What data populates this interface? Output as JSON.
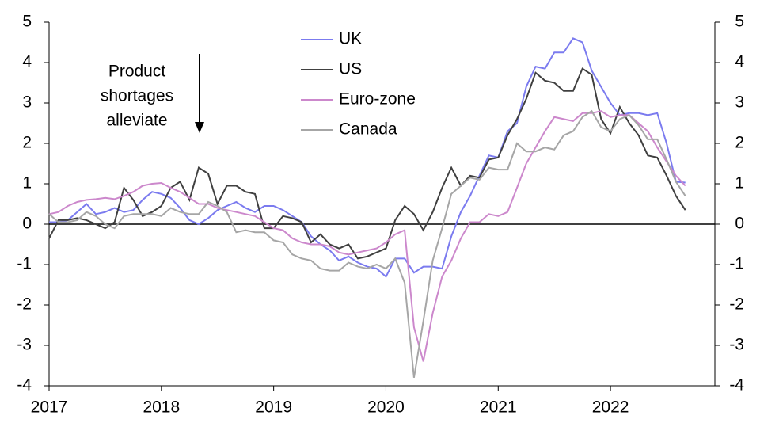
{
  "chart_data": {
    "type": "line",
    "annotation": [
      "Product",
      "shortages",
      "alleviate"
    ],
    "x": [
      2017,
      2017.083,
      2017.167,
      2017.25,
      2017.333,
      2017.417,
      2017.5,
      2017.583,
      2017.667,
      2017.75,
      2017.833,
      2017.917,
      2018,
      2018.083,
      2018.167,
      2018.25,
      2018.333,
      2018.417,
      2018.5,
      2018.583,
      2018.667,
      2018.75,
      2018.833,
      2018.917,
      2019,
      2019.083,
      2019.167,
      2019.25,
      2019.333,
      2019.417,
      2019.5,
      2019.583,
      2019.667,
      2019.75,
      2019.833,
      2019.917,
      2020,
      2020.083,
      2020.167,
      2020.25,
      2020.333,
      2020.417,
      2020.5,
      2020.583,
      2020.667,
      2020.75,
      2020.833,
      2020.917,
      2021,
      2021.083,
      2021.167,
      2021.25,
      2021.333,
      2021.417,
      2021.5,
      2021.583,
      2021.667,
      2021.75,
      2021.833,
      2021.917,
      2022,
      2022.083,
      2022.167,
      2022.25,
      2022.333,
      2022.417,
      2022.5,
      2022.583,
      2022.667
    ],
    "series": [
      {
        "name": "UK",
        "color": "#7b7bef",
        "values": [
          0.05,
          0.05,
          0.1,
          0.3,
          0.5,
          0.25,
          0.3,
          0.4,
          0.3,
          0.35,
          0.6,
          0.8,
          0.75,
          0.65,
          0.4,
          0.1,
          0.0,
          0.15,
          0.35,
          0.45,
          0.55,
          0.4,
          0.3,
          0.45,
          0.45,
          0.35,
          0.2,
          0.05,
          -0.3,
          -0.5,
          -0.65,
          -0.9,
          -0.8,
          -0.95,
          -1.05,
          -1.1,
          -1.3,
          -0.85,
          -0.85,
          -1.2,
          -1.05,
          -1.05,
          -1.1,
          -0.3,
          0.3,
          0.7,
          1.2,
          1.7,
          1.65,
          2.3,
          2.5,
          3.4,
          3.9,
          3.85,
          4.25,
          4.25,
          4.6,
          4.5,
          3.8,
          3.4,
          3.0,
          2.7,
          2.75,
          2.75,
          2.7,
          2.75,
          2.0,
          1.05,
          1.03
        ]
      },
      {
        "name": "US",
        "color": "#404040",
        "values": [
          -0.35,
          0.1,
          0.1,
          0.15,
          0.1,
          0.0,
          -0.1,
          0.05,
          0.9,
          0.6,
          0.2,
          0.3,
          0.45,
          0.9,
          1.05,
          0.6,
          1.4,
          1.25,
          0.5,
          0.95,
          0.95,
          0.8,
          0.75,
          -0.1,
          -0.1,
          0.2,
          0.15,
          0.05,
          -0.45,
          -0.25,
          -0.5,
          -0.6,
          -0.5,
          -0.85,
          -0.8,
          -0.7,
          -0.6,
          0.1,
          0.45,
          0.25,
          -0.15,
          0.3,
          0.9,
          1.4,
          0.95,
          1.2,
          1.15,
          1.6,
          1.65,
          2.2,
          2.6,
          3.1,
          3.75,
          3.55,
          3.5,
          3.3,
          3.3,
          3.85,
          3.7,
          2.6,
          2.25,
          2.9,
          2.5,
          2.2,
          1.7,
          1.65,
          1.2,
          0.7,
          0.35
        ]
      },
      {
        "name": "Euro-zone",
        "color": "#cc88cc",
        "values": [
          0.25,
          0.3,
          0.45,
          0.55,
          0.6,
          0.62,
          0.65,
          0.62,
          0.7,
          0.8,
          0.95,
          1.0,
          1.02,
          0.9,
          0.8,
          0.65,
          0.5,
          0.5,
          0.4,
          0.35,
          0.3,
          0.25,
          0.2,
          0.05,
          -0.1,
          -0.15,
          -0.35,
          -0.45,
          -0.5,
          -0.5,
          -0.55,
          -0.7,
          -0.75,
          -0.7,
          -0.65,
          -0.6,
          -0.45,
          -0.25,
          -0.15,
          -2.55,
          -3.4,
          -2.2,
          -1.3,
          -0.9,
          -0.35,
          0.05,
          0.05,
          0.25,
          0.2,
          0.3,
          0.9,
          1.5,
          1.9,
          2.3,
          2.65,
          2.6,
          2.55,
          2.75,
          2.75,
          2.8,
          2.65,
          2.7,
          2.7,
          2.5,
          2.3,
          1.9,
          1.55,
          1.2,
          0.95
        ]
      },
      {
        "name": "Canada",
        "color": "#a6a6a6",
        "values": [
          0.25,
          0.05,
          0.05,
          0.1,
          0.3,
          0.2,
          0.0,
          -0.1,
          0.2,
          0.25,
          0.25,
          0.25,
          0.2,
          0.4,
          0.3,
          0.25,
          0.25,
          0.55,
          0.45,
          0.3,
          -0.2,
          -0.15,
          -0.2,
          -0.2,
          -0.4,
          -0.45,
          -0.75,
          -0.85,
          -0.9,
          -1.1,
          -1.15,
          -1.15,
          -0.95,
          -1.05,
          -1.1,
          -1.0,
          -1.1,
          -0.85,
          -1.45,
          -3.8,
          -2.4,
          -0.9,
          -0.1,
          0.75,
          0.95,
          1.15,
          1.1,
          1.4,
          1.35,
          1.35,
          2.0,
          1.8,
          1.8,
          1.9,
          1.85,
          2.2,
          2.3,
          2.65,
          2.8,
          2.4,
          2.3,
          2.6,
          2.7,
          2.45,
          2.1,
          2.1,
          1.6,
          1.05,
          0.7
        ]
      }
    ],
    "xlim": [
      2017,
      2022.93
    ],
    "xticks": [
      2017,
      2018,
      2019,
      2020,
      2021,
      2022
    ],
    "ylim": [
      -4,
      5
    ],
    "yticks": [
      -4,
      -3,
      -2,
      -1,
      0,
      1,
      2,
      3,
      4,
      5
    ],
    "y2lim": [
      -4,
      5
    ],
    "y2ticks": [
      -4,
      -3,
      -2,
      -1,
      0,
      1,
      2,
      3,
      4,
      5
    ],
    "legend": "top"
  }
}
